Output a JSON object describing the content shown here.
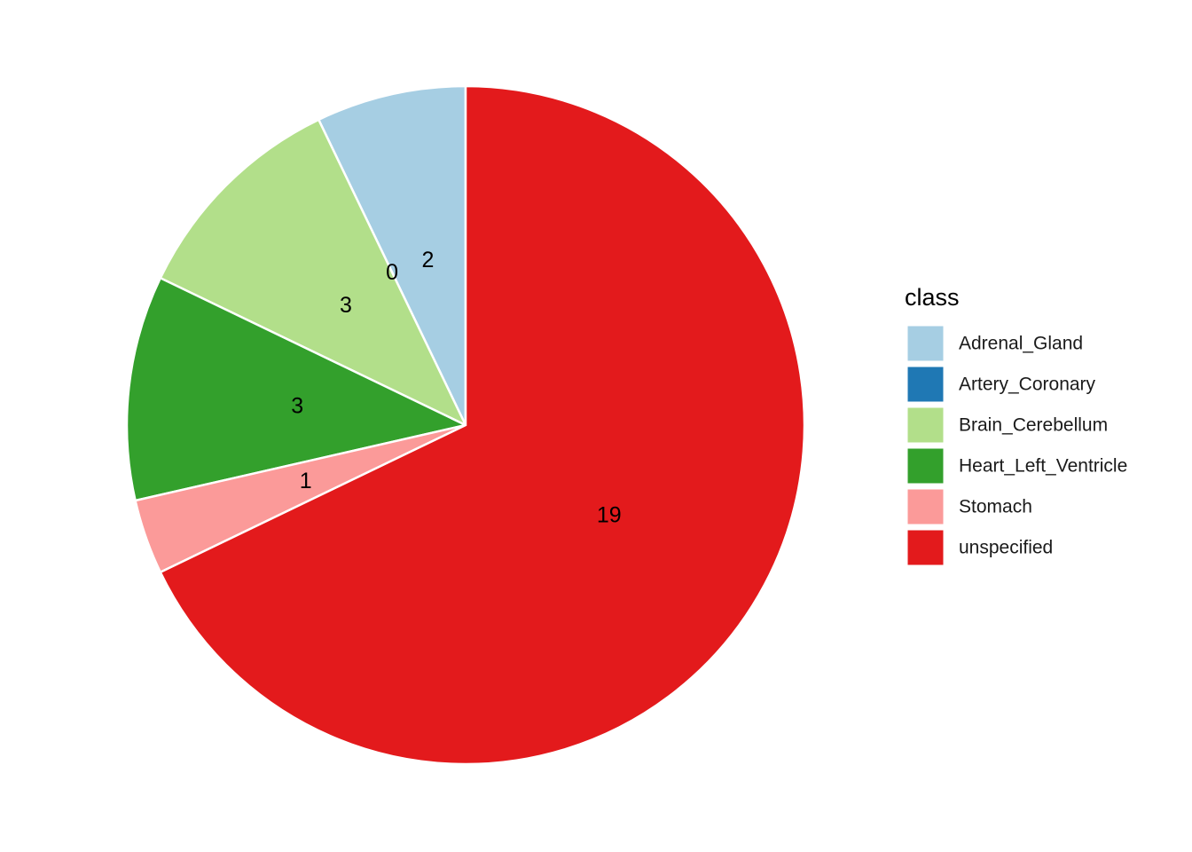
{
  "chart_data": {
    "type": "pie",
    "direction": "counterclockwise",
    "start": "top",
    "categories": [
      "Adrenal_Gland",
      "Artery_Coronary",
      "Brain_Cerebellum",
      "Heart_Left_Ventricle",
      "Stomach",
      "unspecified"
    ],
    "values": [
      2,
      0,
      3,
      3,
      1,
      19
    ],
    "data_labels": [
      "2",
      "0",
      "3",
      "3",
      "1",
      "19"
    ],
    "colors": [
      "#a6cee3",
      "#1f78b4",
      "#b2df8a",
      "#33a02c",
      "#fb9a99",
      "#e31a1c"
    ],
    "legend": {
      "title": "class",
      "position": "right",
      "entries": [
        "Adrenal_Gland",
        "Artery_Coronary",
        "Brain_Cerebellum",
        "Heart_Left_Ventricle",
        "Stomach",
        "unspecified"
      ]
    }
  }
}
